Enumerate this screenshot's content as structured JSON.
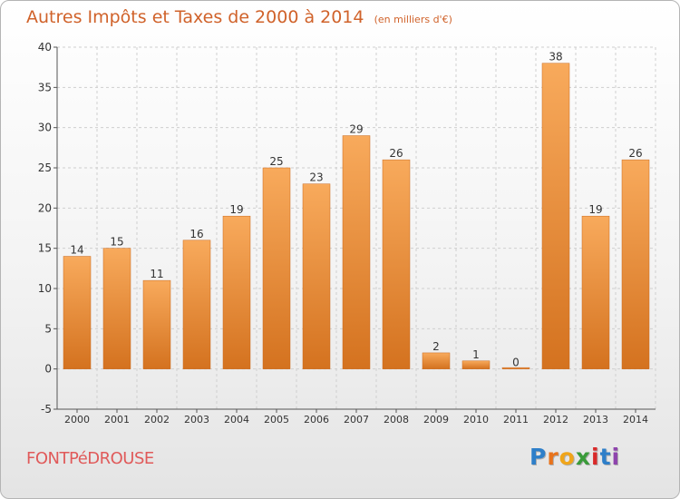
{
  "header": {
    "title": "Autres Impôts et Taxes de 2000 à 2014",
    "subtitle": "(en milliers d'€)"
  },
  "commune": "FONTPéDROUSE",
  "logo": {
    "text": "Proxiti",
    "colors": [
      "#2e7fc9",
      "#e8731c",
      "#f0a51a",
      "#3a9b3a",
      "#d92a2a",
      "#2e7fc9",
      "#8e44ad"
    ]
  },
  "colors": {
    "title": "#d0622a",
    "bar_light": "#f8aa5c",
    "bar_dark": "#d4721f",
    "grid": "#cfcfcf",
    "axis": "#555555"
  },
  "chart_data": {
    "type": "bar",
    "categories": [
      "2000",
      "2001",
      "2002",
      "2003",
      "2004",
      "2005",
      "2006",
      "2007",
      "2008",
      "2009",
      "2010",
      "2011",
      "2012",
      "2013",
      "2014"
    ],
    "values": [
      14,
      15,
      11,
      16,
      19,
      25,
      23,
      29,
      26,
      2,
      1,
      0,
      38,
      19,
      26
    ],
    "title": "Autres Impôts et Taxes de 2000 à 2014",
    "subtitle": "(en milliers d'€)",
    "xlabel": "",
    "ylabel": "",
    "ylim": [
      -5,
      40
    ],
    "yticks": [
      -5,
      0,
      5,
      10,
      15,
      20,
      25,
      30,
      35,
      40
    ],
    "grid": "horizontal dashed",
    "legend": "none"
  }
}
